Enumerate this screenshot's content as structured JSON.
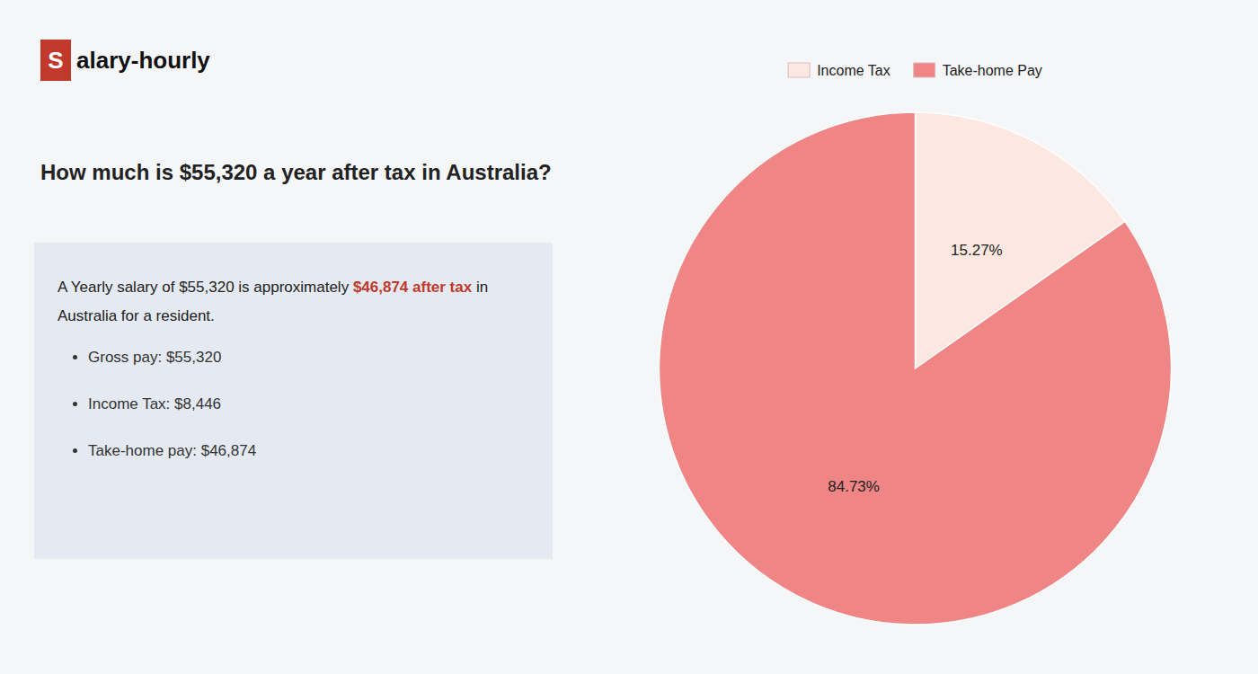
{
  "chart_data": {
    "type": "pie",
    "title": "How much is $55,320 a year after tax in Australia?",
    "categories": [
      "Income Tax",
      "Take-home Pay"
    ],
    "values": [
      15.27,
      84.73
    ],
    "value_labels": [
      "15.27%",
      "84.73%"
    ],
    "colors": [
      "#fce8e0",
      "#f08585"
    ],
    "data_labels": true,
    "legend": "top",
    "annotations": [
      {
        "text": "S",
        "color": "#c0392b"
      },
      {
        "text": "alary-hourly"
      },
      {
        "text": "A Yearly salary of $55,320 is approximately "
      },
      {
        "text": "$46,874 after tax",
        "color": "#c0392b"
      },
      {
        "text": " in"
      },
      {
        "text": "Australia for a resident."
      },
      {
        "text": "Gross pay: $55,320"
      },
      {
        "text": "Income Tax: $8,446"
      },
      {
        "text": "Take-home pay: $46,874"
      }
    ]
  }
}
